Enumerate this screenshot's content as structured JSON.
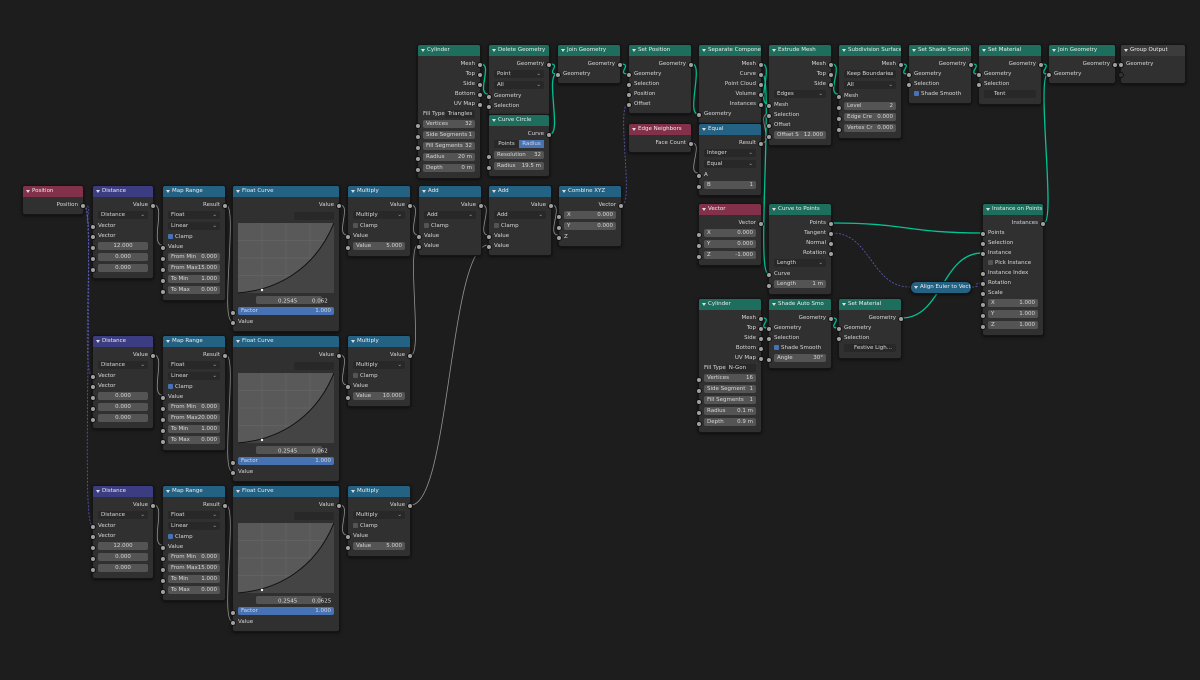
{
  "nodes": [
    {
      "title": "Cylinder",
      "color": "#1d6e5c",
      "rows": [
        {
          "out": "Mesh"
        },
        {
          "out": "Top"
        },
        {
          "out": "Side"
        },
        {
          "out": "Bottom"
        },
        {
          "out": "UV Map"
        },
        {
          "label": "Fill Type",
          "menu": "Triangles"
        },
        {
          "field": "Vertices",
          "value": "32"
        },
        {
          "field": "Side Segments",
          "value": "1"
        },
        {
          "field": "Fill Segments",
          "value": "32"
        },
        {
          "field": "Radius",
          "value": "20 m"
        },
        {
          "field": "Depth",
          "value": "0 m"
        }
      ]
    },
    {
      "title": "Delete Geometry",
      "color": "#1d6e5c",
      "rows": [
        {
          "out": "Geometry"
        },
        {
          "menu": "Point"
        },
        {
          "menu": "All"
        },
        {
          "in": "Geometry"
        },
        {
          "in": "Selection"
        }
      ]
    },
    {
      "title": "Curve Circle",
      "color": "#1d6e5c",
      "rows": [
        {
          "out": "Curve"
        },
        {
          "toggle": [
            "Points",
            "Radius"
          ],
          "active": 1
        },
        {
          "field": "Resolution",
          "value": "32"
        },
        {
          "field": "Radius",
          "value": "19.5 m"
        }
      ]
    },
    {
      "title": "Join Geometry",
      "color": "#1d6e5c",
      "rows": [
        {
          "out": "Geometry"
        },
        {
          "in": "Geometry"
        }
      ]
    },
    {
      "title": "Set Position",
      "color": "#1d6e5c",
      "rows": [
        {
          "out": "Geometry"
        },
        {
          "in": "Geometry"
        },
        {
          "in": "Selection"
        },
        {
          "in": "Position"
        },
        {
          "in": "Offset"
        }
      ]
    },
    {
      "title": "Edge Neighbors",
      "color": "#83314a",
      "rows": [
        {
          "out": "Face Count"
        }
      ]
    },
    {
      "title": "Separate Components",
      "color": "#1d6e5c",
      "rows": [
        {
          "out": "Mesh"
        },
        {
          "out": "Curve"
        },
        {
          "out": "Point Cloud"
        },
        {
          "out": "Volume"
        },
        {
          "out": "Instances"
        },
        {
          "in": "Geometry"
        }
      ]
    },
    {
      "title": "Equal",
      "color": "#246283",
      "rows": [
        {
          "out": "Result"
        },
        {
          "menu": "Integer"
        },
        {
          "menu": "Equal"
        },
        {
          "in": "A"
        },
        {
          "field": "B",
          "value": "1"
        }
      ]
    },
    {
      "title": "Extrude Mesh",
      "color": "#1d6e5c",
      "rows": [
        {
          "out": "Mesh"
        },
        {
          "out": "Top"
        },
        {
          "out": "Side"
        },
        {
          "menu": "Edges"
        },
        {
          "in": "Mesh"
        },
        {
          "in": "Selection"
        },
        {
          "in": "Offset"
        },
        {
          "field": "Offset S",
          "value": "12.000"
        }
      ]
    },
    {
      "title": "Subdivision Surface",
      "color": "#1d6e5c",
      "rows": [
        {
          "out": "Mesh"
        },
        {
          "menu": "Keep Boundaries"
        },
        {
          "menu": "All"
        },
        {
          "in": "Mesh"
        },
        {
          "field": "Level",
          "value": "2"
        },
        {
          "field": "Edge Cre",
          "value": "0.000"
        },
        {
          "field": "Vertex Cr",
          "value": "0.000"
        }
      ]
    },
    {
      "title": "Set Shade Smooth",
      "color": "#1d6e5c",
      "rows": [
        {
          "out": "Geometry"
        },
        {
          "in": "Geometry"
        },
        {
          "in": "Selection"
        },
        {
          "check": "Shade Smooth",
          "checked": true
        }
      ]
    },
    {
      "title": "Set Material",
      "color": "#1d6e5c",
      "rows": [
        {
          "out": "Geometry"
        },
        {
          "in": "Geometry"
        },
        {
          "in": "Selection"
        },
        {
          "material": "Tent"
        }
      ]
    },
    {
      "title": "Join Geometry",
      "color": "#1d6e5c",
      "rows": [
        {
          "out": "Geometry"
        },
        {
          "in": "Geometry"
        }
      ]
    },
    {
      "title": "Group Output",
      "color": "#3c3c3c",
      "rows": [
        {
          "in": "Geometry"
        }
      ]
    },
    {
      "title": "Vector",
      "color": "#83314a",
      "rows": [
        {
          "out": "Vector"
        },
        {
          "field": "X",
          "value": "0.000"
        },
        {
          "field": "Y",
          "value": "0.000"
        },
        {
          "field": "Z",
          "value": "-1.000"
        }
      ]
    },
    {
      "title": "Curve to Points",
      "color": "#1d6e5c",
      "rows": [
        {
          "out": "Points"
        },
        {
          "out": "Tangent"
        },
        {
          "out": "Normal"
        },
        {
          "out": "Rotation"
        },
        {
          "menu": "Length"
        },
        {
          "in": "Curve"
        },
        {
          "field": "Length",
          "value": "1 m"
        }
      ]
    },
    {
      "title": "Instance on Points",
      "color": "#1d6e5c",
      "rows": [
        {
          "out": "Instances"
        },
        {
          "in": "Points"
        },
        {
          "in": "Selection"
        },
        {
          "in": "Instance"
        },
        {
          "check": "Pick Instance",
          "checked": false
        },
        {
          "in": "Instance Index"
        },
        {
          "in": "Rotation"
        },
        {
          "in": "Scale"
        },
        {
          "field": "X",
          "value": "1.000"
        },
        {
          "field": "Y",
          "value": "1.000"
        },
        {
          "field": "Z",
          "value": "1.000"
        }
      ]
    },
    {
      "title": "Align Euler to Vector",
      "color": "#246283",
      "collapsed": true,
      "rows": []
    },
    {
      "title": "Cylinder",
      "color": "#1d6e5c",
      "rows": [
        {
          "out": "Mesh"
        },
        {
          "out": "Top"
        },
        {
          "out": "Side"
        },
        {
          "out": "Bottom"
        },
        {
          "out": "UV Map"
        },
        {
          "label": "Fill Type",
          "menu": "N-Gon"
        },
        {
          "field": "Vertices",
          "value": "16"
        },
        {
          "field": "Side Segment",
          "value": "1"
        },
        {
          "field": "Fill Segments",
          "value": "1"
        },
        {
          "field": "Radius",
          "value": "0.1 m"
        },
        {
          "field": "Depth",
          "value": "0.9 m"
        }
      ]
    },
    {
      "title": "Shade Auto Smo",
      "color": "#1d6e5c",
      "rows": [
        {
          "out": "Geometry"
        },
        {
          "in": "Geometry"
        },
        {
          "in": "Selection"
        },
        {
          "check": "Shade Smooth",
          "checked": true
        },
        {
          "field": "Angle",
          "value": "30°"
        }
      ]
    },
    {
      "title": "Set Material",
      "color": "#1d6e5c",
      "rows": [
        {
          "out": "Geometry"
        },
        {
          "in": "Geometry"
        },
        {
          "in": "Selection"
        },
        {
          "material": "Festive Ligh..."
        }
      ]
    },
    {
      "title": "Position",
      "color": "#83314a",
      "rows": [
        {
          "out": "Position"
        }
      ]
    },
    {
      "title": "Distance",
      "color": "#3c3c83",
      "rows": [
        {
          "out": "Value"
        },
        {
          "menu": "Distance"
        },
        {
          "in": "Vector"
        },
        {
          "in": "Vector"
        },
        {
          "value": "12.000"
        },
        {
          "value": "0.000"
        },
        {
          "value": "0.000"
        }
      ]
    },
    {
      "title": "Map Range",
      "color": "#246283",
      "rows": [
        {
          "out": "Result"
        },
        {
          "menu": "Float"
        },
        {
          "menu": "Linear"
        },
        {
          "check": "Clamp",
          "checked": true
        },
        {
          "in": "Value"
        },
        {
          "field": "From Min",
          "value": "0.000"
        },
        {
          "field": "From Max",
          "value": "15.000"
        },
        {
          "field": "To Min",
          "value": "1.000"
        },
        {
          "field": "To Max",
          "value": "0.000"
        }
      ]
    },
    {
      "title": "Float Curve",
      "color": "#246283",
      "rows": [
        {
          "out": "Value"
        },
        {
          "curve_x": "0.2545",
          "curve_y": "0.062"
        },
        {
          "field": "Factor",
          "value": "1.000",
          "slider": true
        },
        {
          "in": "Value"
        }
      ]
    },
    {
      "title": "Multiply",
      "color": "#246283",
      "rows": [
        {
          "out": "Value"
        },
        {
          "menu": "Multiply"
        },
        {
          "check": "Clamp",
          "checked": false
        },
        {
          "in": "Value"
        },
        {
          "field": "Value",
          "value": "5.000"
        }
      ]
    },
    {
      "title": "Add",
      "color": "#246283",
      "rows": [
        {
          "out": "Value"
        },
        {
          "menu": "Add"
        },
        {
          "check": "Clamp",
          "checked": false
        },
        {
          "in": "Value"
        },
        {
          "in": "Value"
        }
      ]
    },
    {
      "title": "Add",
      "color": "#246283",
      "rows": [
        {
          "out": "Value"
        },
        {
          "menu": "Add"
        },
        {
          "check": "Clamp",
          "checked": false
        },
        {
          "in": "Value"
        },
        {
          "in": "Value"
        }
      ]
    },
    {
      "title": "Combine XYZ",
      "color": "#246283",
      "rows": [
        {
          "out": "Vector"
        },
        {
          "field": "X",
          "value": "0.000"
        },
        {
          "field": "Y",
          "value": "0.000"
        },
        {
          "in": "Z"
        }
      ]
    },
    {
      "title": "Distance",
      "color": "#3c3c83",
      "rows": [
        {
          "out": "Value"
        },
        {
          "menu": "Distance"
        },
        {
          "in": "Vector"
        },
        {
          "in": "Vector"
        },
        {
          "value": "0.000"
        },
        {
          "value": "0.000"
        },
        {
          "value": "0.000"
        }
      ]
    },
    {
      "title": "Map Range",
      "color": "#246283",
      "rows": [
        {
          "out": "Result"
        },
        {
          "menu": "Float"
        },
        {
          "menu": "Linear"
        },
        {
          "check": "Clamp",
          "checked": true
        },
        {
          "in": "Value"
        },
        {
          "field": "From Min",
          "value": "0.000"
        },
        {
          "field": "From Max",
          "value": "20.000"
        },
        {
          "field": "To Min",
          "value": "1.000"
        },
        {
          "field": "To Max",
          "value": "0.000"
        }
      ]
    },
    {
      "title": "Float Curve",
      "color": "#246283",
      "rows": [
        {
          "out": "Value"
        },
        {
          "curve_x": "0.2545",
          "curve_y": "0.062"
        },
        {
          "field": "Factor",
          "value": "1.000",
          "slider": true
        },
        {
          "in": "Value"
        }
      ]
    },
    {
      "title": "Multiply",
      "color": "#246283",
      "rows": [
        {
          "out": "Value"
        },
        {
          "menu": "Multiply"
        },
        {
          "check": "Clamp",
          "checked": false
        },
        {
          "in": "Value"
        },
        {
          "field": "Value",
          "value": "10.000"
        }
      ]
    },
    {
      "title": "Distance",
      "color": "#3c3c83",
      "rows": [
        {
          "out": "Value"
        },
        {
          "menu": "Distance"
        },
        {
          "in": "Vector"
        },
        {
          "in": "Vector"
        },
        {
          "value": "12.000"
        },
        {
          "value": "0.000"
        },
        {
          "value": "0.000"
        }
      ]
    },
    {
      "title": "Map Range",
      "color": "#246283",
      "rows": [
        {
          "out": "Result"
        },
        {
          "menu": "Float"
        },
        {
          "menu": "Linear"
        },
        {
          "check": "Clamp",
          "checked": true
        },
        {
          "in": "Value"
        },
        {
          "field": "From Min",
          "value": "0.000"
        },
        {
          "field": "From Max",
          "value": "15.000"
        },
        {
          "field": "To Min",
          "value": "1.000"
        },
        {
          "field": "To Max",
          "value": "0.000"
        }
      ]
    },
    {
      "title": "Float Curve",
      "color": "#246283",
      "rows": [
        {
          "out": "Value"
        },
        {
          "curve_x": "0.2545",
          "curve_y": "0.0625"
        },
        {
          "field": "Factor",
          "value": "1.000",
          "slider": true
        },
        {
          "in": "Value"
        }
      ]
    },
    {
      "title": "Multiply",
      "color": "#246283",
      "rows": [
        {
          "out": "Value"
        },
        {
          "menu": "Multiply"
        },
        {
          "check": "Clamp",
          "checked": false
        },
        {
          "in": "Value"
        },
        {
          "field": "Value",
          "value": "5.000"
        }
      ]
    }
  ]
}
